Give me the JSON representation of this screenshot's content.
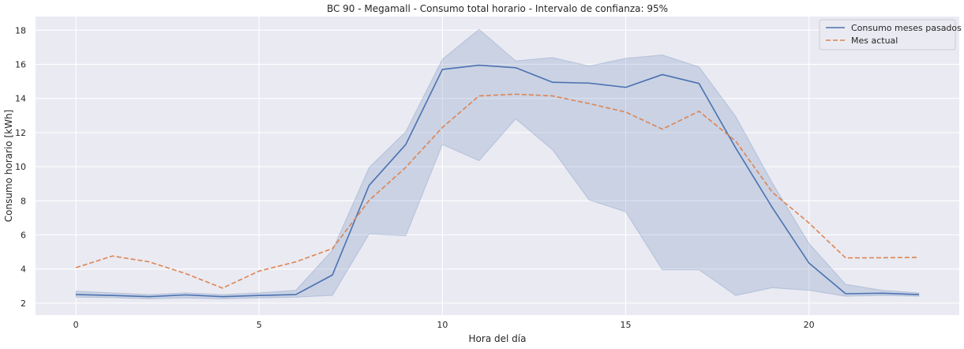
{
  "chart_data": {
    "type": "line",
    "title": "BC 90 - Megamall - Consumo total horario - Intervalo de confianza: 95%",
    "xlabel": "Hora del día",
    "ylabel": "Consumo horario [kWh]",
    "xlim": [
      -1.1,
      24.1
    ],
    "ylim": [
      1.3,
      18.8
    ],
    "xticks": [
      0,
      5,
      10,
      15,
      20
    ],
    "yticks": [
      2,
      4,
      6,
      8,
      10,
      12,
      14,
      16,
      18
    ],
    "grid": true,
    "legend_position": "top-right",
    "x": [
      0,
      1,
      2,
      3,
      4,
      5,
      6,
      7,
      8,
      9,
      10,
      11,
      12,
      13,
      14,
      15,
      16,
      17,
      18,
      19,
      20,
      21,
      22,
      23
    ],
    "series": [
      {
        "name": "Consumo meses pasados",
        "color": "#4c72b0",
        "style": "solid",
        "values": [
          2.5,
          2.45,
          2.38,
          2.48,
          2.38,
          2.45,
          2.5,
          3.65,
          8.9,
          11.3,
          15.7,
          15.95,
          15.8,
          14.95,
          14.9,
          14.65,
          15.4,
          14.88,
          11.1,
          7.6,
          4.35,
          2.55,
          2.58,
          2.5
        ],
        "ci_lower": [
          2.35,
          2.32,
          2.25,
          2.3,
          2.25,
          2.3,
          2.35,
          2.45,
          6.05,
          5.95,
          11.3,
          10.35,
          12.8,
          11.0,
          8.05,
          7.35,
          3.95,
          3.95,
          2.45,
          2.9,
          2.75,
          2.4,
          2.45,
          2.4
        ],
        "ci_upper": [
          2.7,
          2.6,
          2.5,
          2.6,
          2.5,
          2.6,
          2.75,
          5.1,
          9.95,
          12.05,
          16.3,
          18.05,
          16.2,
          16.4,
          15.9,
          16.35,
          16.55,
          15.85,
          12.95,
          9.05,
          5.5,
          3.1,
          2.75,
          2.6
        ]
      },
      {
        "name": "Mes actual",
        "color": "#dd8452",
        "style": "dashed",
        "values": [
          4.08,
          4.76,
          4.42,
          3.73,
          2.88,
          3.88,
          4.42,
          5.2,
          8.02,
          9.96,
          12.3,
          14.15,
          14.25,
          14.15,
          13.7,
          13.2,
          12.2,
          13.25,
          11.5,
          8.5,
          6.7,
          4.65,
          4.66,
          4.68
        ]
      }
    ]
  }
}
